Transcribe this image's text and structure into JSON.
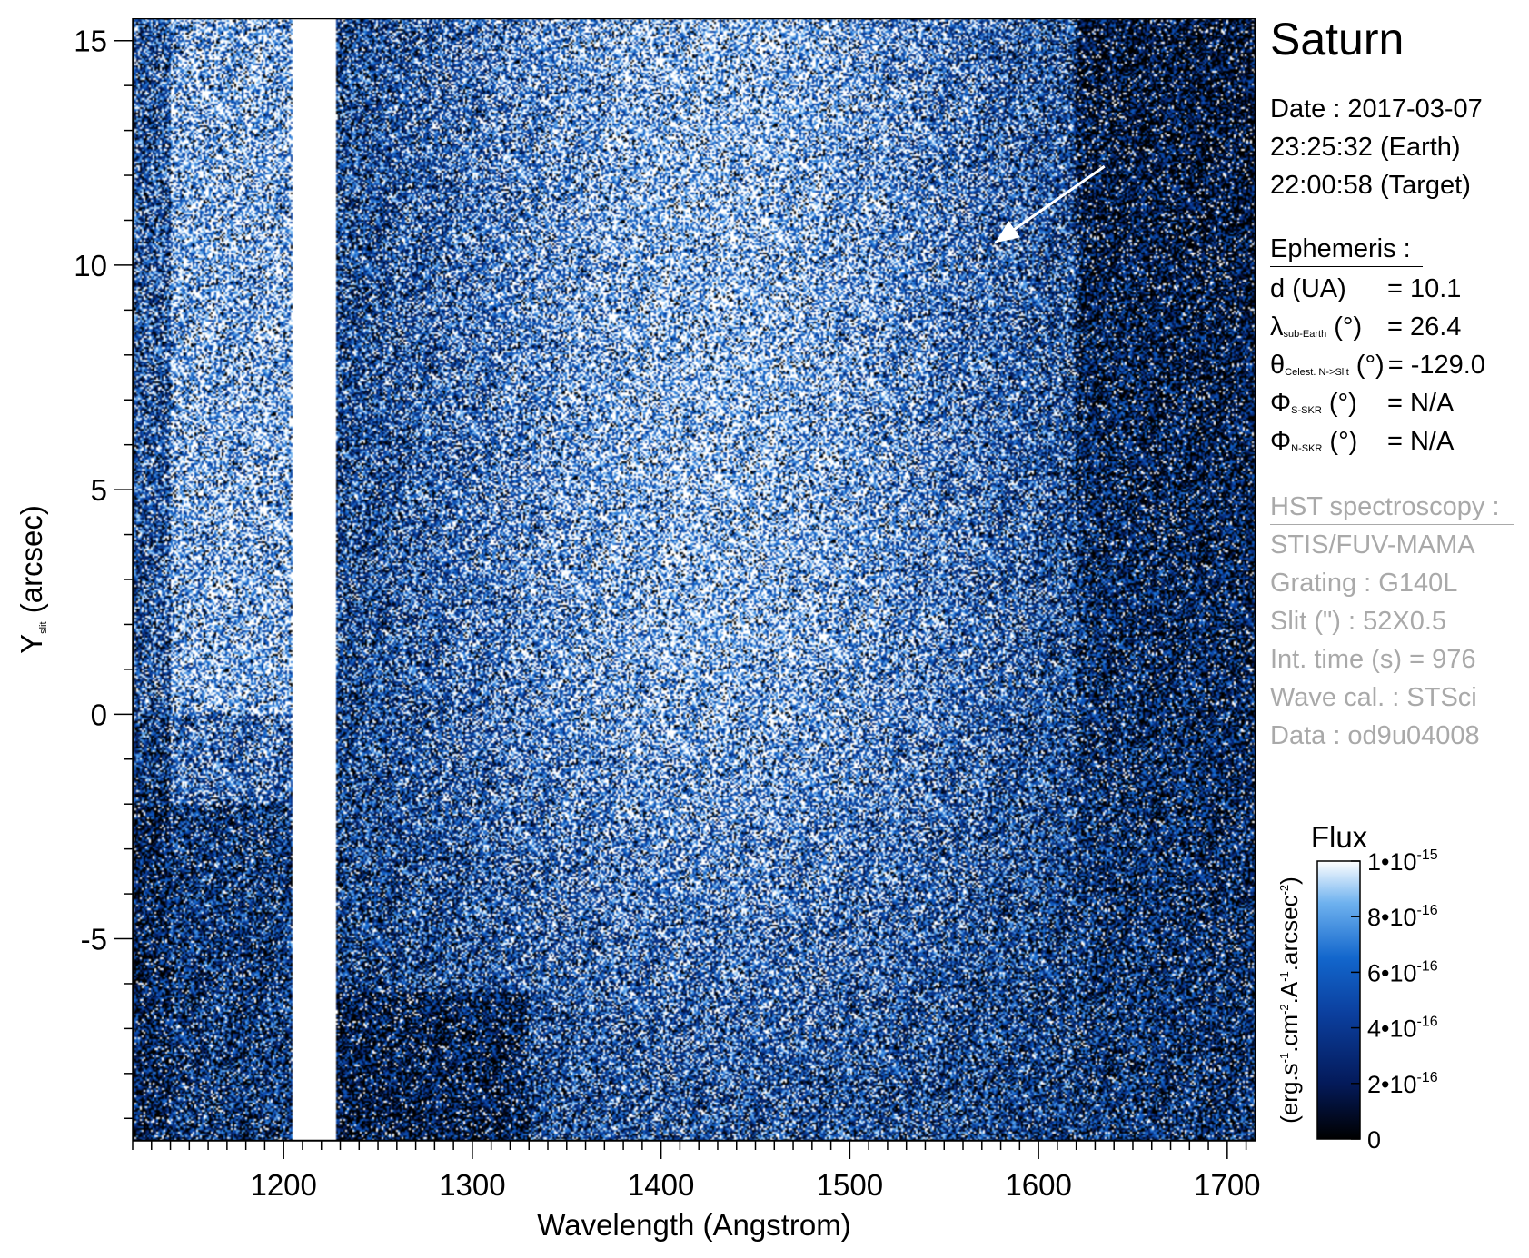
{
  "planet": "Saturn",
  "observation": {
    "date": "Date : 2017-03-07",
    "time_earth": "23:25:32 (Earth)",
    "time_target": "22:00:58 (Target)"
  },
  "ephemeris": {
    "heading": "Ephemeris :",
    "rows": [
      {
        "symbol": "d",
        "sub": "",
        "unit": " (UA)",
        "value": "= 10.1"
      },
      {
        "symbol": "λ",
        "sub": "sub-Earth",
        "unit": " (°)",
        "value": "= 26.4"
      },
      {
        "symbol": "θ",
        "sub": "Celest. N->Slit",
        "unit": " (°)",
        "value": "= -129.0"
      },
      {
        "symbol": "Φ",
        "sub": "S-SKR",
        "unit": " (°)",
        "value": "= N/A"
      },
      {
        "symbol": "Φ",
        "sub": "N-SKR",
        "unit": " (°)",
        "value": "= N/A"
      }
    ]
  },
  "hst": {
    "heading": "HST spectroscopy :",
    "lines": [
      "STIS/FUV-MAMA",
      "Grating : G140L",
      "Slit (\") : 52X0.5",
      "Int. time (s) = 976",
      "Wave cal. : STSci",
      "Data : od9u04008"
    ]
  },
  "colors": {
    "background": "#000000",
    "low": "#020a2a",
    "mid": "#0a4fb0",
    "high": "#2f8fe6",
    "saturation": "#ffffff",
    "secondary_text": "#a9a9a9"
  },
  "chart_data": {
    "type": "heatmap",
    "title": "",
    "xlabel": "Wavelength (Angstrom)",
    "ylabel": "Y",
    "ylabel_sub": "slit",
    "ylabel_unit": " (arcsec)",
    "xlim": [
      1120,
      1715
    ],
    "ylim": [
      -9.5,
      15.5
    ],
    "xticks": [
      1200,
      1300,
      1400,
      1500,
      1600,
      1700
    ],
    "xtick_labels": [
      "1200",
      "1300",
      "1400",
      "1500",
      "1600",
      "1700"
    ],
    "yticks": [
      -5,
      0,
      5,
      10,
      15
    ],
    "ytick_labels": [
      "-5",
      "0",
      "5",
      "10",
      "15"
    ],
    "saturated_band_angstrom": [
      1205,
      1228
    ],
    "arrow": {
      "from": [
        1635,
        12.2
      ],
      "to": [
        1577,
        10.5
      ]
    },
    "colorbar": {
      "title": "Flux",
      "label": "(erg.s-1.cm-2.A-1.arcsec-2)",
      "range": [
        0,
        1e-15
      ],
      "ticks": [
        0,
        2e-16,
        4e-16,
        6e-16,
        8e-16,
        1e-15
      ],
      "tick_labels": [
        {
          "mantissa": "0",
          "exponent": ""
        },
        {
          "mantissa": "2•10",
          "exponent": "-16"
        },
        {
          "mantissa": "4•10",
          "exponent": "-16"
        },
        {
          "mantissa": "6•10",
          "exponent": "-16"
        },
        {
          "mantissa": "8•10",
          "exponent": "-16"
        },
        {
          "mantissa": "1•10",
          "exponent": "-15"
        }
      ]
    }
  }
}
